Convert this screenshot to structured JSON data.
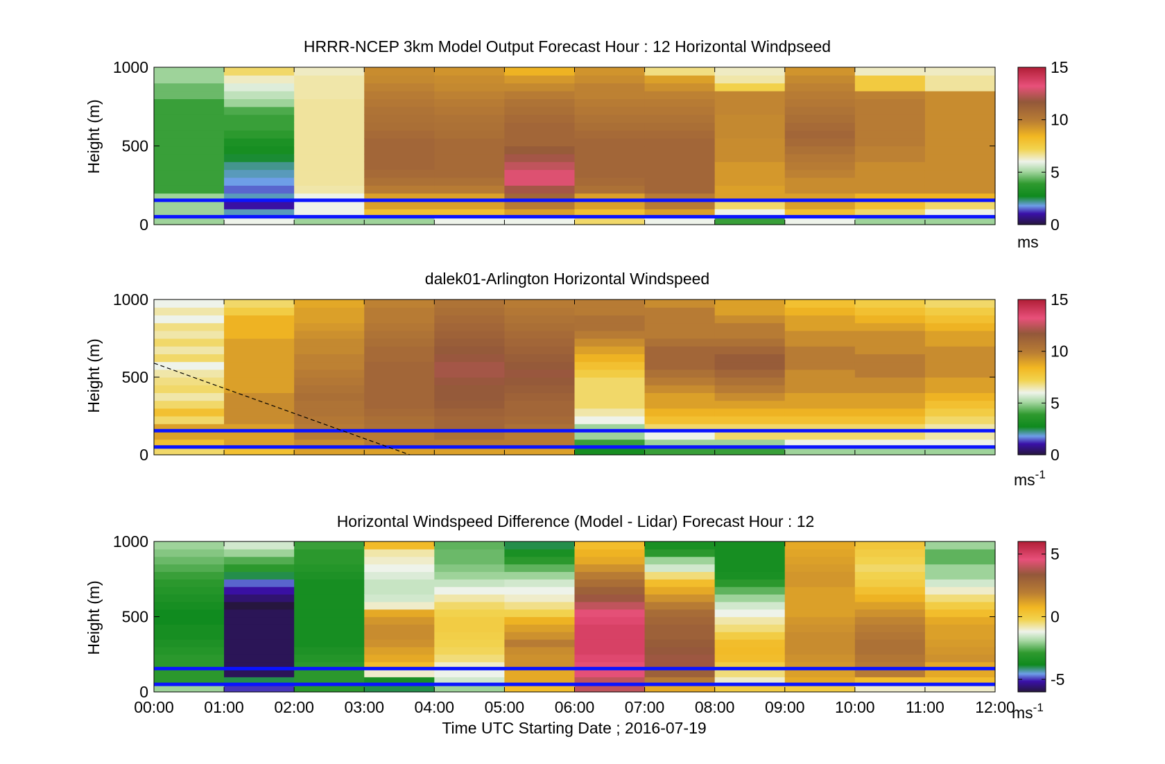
{
  "chart_data": [
    {
      "type": "heatmap",
      "title": "HRRR-NCEP 3km Model Output   Forecast Hour : 12 Horizontal Windpseed",
      "ylabel": "Height (m)",
      "ylim": [
        0,
        1000
      ],
      "yticks": [
        "0",
        "500",
        "1000"
      ],
      "x_categories": [
        "00:00",
        "01:00",
        "02:00",
        "03:00",
        "04:00",
        "05:00",
        "06:00",
        "07:00",
        "08:00",
        "09:00",
        "10:00",
        "11:00"
      ],
      "colorbar": {
        "range": [
          0,
          15
        ],
        "ticks": [
          "0",
          "5",
          "10",
          "15"
        ],
        "unit": "ms",
        "unit_sup": ""
      },
      "reference_lines_m": [
        50,
        155
      ],
      "heights_m": [
        25,
        75,
        125,
        175,
        225,
        275,
        325,
        375,
        425,
        475,
        525,
        575,
        625,
        675,
        725,
        775,
        825,
        875,
        925,
        975
      ],
      "values": [
        [
          5,
          5,
          5,
          5,
          4,
          4,
          4,
          4,
          4,
          4,
          4,
          4,
          4,
          4,
          4,
          4,
          4.5,
          4.5,
          5,
          5
        ],
        [
          6,
          2,
          1,
          2,
          1.5,
          1.8,
          2,
          2.2,
          2.6,
          3,
          3.2,
          3.8,
          4,
          4,
          4.2,
          5,
          5.4,
          5.8,
          6.3,
          7
        ],
        [
          5,
          6,
          6,
          6,
          6.5,
          6.6,
          6.6,
          6.6,
          6.6,
          6.6,
          6.6,
          6.6,
          6.6,
          6.6,
          6.6,
          6.6,
          6.5,
          6.5,
          6.5,
          6.3
        ],
        [
          5,
          8,
          9,
          9,
          10,
          10.5,
          10.8,
          11,
          11,
          11,
          11,
          10.8,
          10.6,
          10.5,
          10.4,
          10.2,
          10,
          9.8,
          9.6,
          9.5
        ],
        [
          6,
          8,
          9,
          9,
          10,
          10.5,
          10.8,
          10.8,
          10.8,
          10.8,
          10.8,
          10.6,
          10.5,
          10.4,
          10.2,
          10,
          9.8,
          9.6,
          9.5,
          9.3
        ],
        [
          6,
          9,
          10,
          11,
          12,
          13,
          13,
          12.5,
          12,
          11.5,
          11,
          11,
          11,
          10.8,
          10.6,
          10.4,
          10,
          9.6,
          9.2,
          8.5
        ],
        [
          7,
          8,
          9,
          9,
          10.5,
          10.8,
          11,
          11,
          11,
          11,
          11,
          10.8,
          10.6,
          10.4,
          10.2,
          10,
          9.8,
          9.8,
          9.5,
          9.3
        ],
        [
          6,
          9,
          10,
          10,
          11,
          11,
          11,
          11,
          11,
          11,
          11,
          10.8,
          10.6,
          10.4,
          10.2,
          10,
          9.8,
          9.4,
          9,
          6.8
        ],
        [
          4,
          6,
          7,
          9,
          9,
          9.2,
          9.2,
          9.2,
          9.5,
          9.5,
          9.5,
          9.6,
          9.6,
          9.6,
          9.7,
          9.7,
          9.7,
          7.3,
          6.5,
          6.3
        ],
        [
          6,
          8,
          9,
          9,
          9.5,
          9.5,
          9.8,
          10,
          10.2,
          10.5,
          10.8,
          11,
          10.8,
          10.6,
          10.4,
          10.2,
          10,
          9.8,
          9.6,
          9.3
        ],
        [
          5,
          7,
          8,
          8.5,
          9.5,
          9.5,
          9.5,
          9.5,
          9.8,
          9.8,
          10,
          10,
          10,
          10,
          10,
          10,
          9.8,
          7.6,
          7.6,
          6.3
        ],
        [
          5,
          6,
          7,
          8.5,
          9.5,
          9.5,
          9.5,
          9.5,
          9.5,
          9.5,
          9.5,
          9.5,
          9.5,
          9.5,
          9.5,
          9.5,
          9.5,
          6.6,
          6.6,
          6.3
        ]
      ]
    },
    {
      "type": "heatmap",
      "title": "dalek01-Arlington  Horizontal Windspeed",
      "ylabel": "Height (m)",
      "ylim": [
        0,
        1000
      ],
      "yticks": [
        "0",
        "500",
        "1000"
      ],
      "x_categories": [
        "00:00",
        "01:00",
        "02:00",
        "03:00",
        "04:00",
        "05:00",
        "06:00",
        "07:00",
        "08:00",
        "09:00",
        "10:00",
        "11:00"
      ],
      "colorbar": {
        "range": [
          0,
          15
        ],
        "ticks": [
          "0",
          "5",
          "10",
          "15"
        ],
        "unit": "ms",
        "unit_sup": "-1"
      },
      "reference_lines_m": [
        50,
        155
      ],
      "heights_m": [
        25,
        75,
        125,
        175,
        225,
        275,
        325,
        375,
        425,
        475,
        525,
        575,
        625,
        675,
        725,
        775,
        825,
        875,
        925,
        975
      ],
      "dashed_line": [
        [
          0,
          590
        ],
        [
          3.65,
          0
        ]
      ],
      "values": [
        [
          7,
          8,
          9,
          9,
          7,
          8,
          7,
          6.5,
          7,
          6.8,
          6.5,
          6,
          7,
          6.5,
          7,
          6.5,
          6.8,
          6,
          6.5,
          6
        ],
        [
          8,
          9,
          9,
          9,
          9.5,
          9.5,
          9.5,
          9.5,
          9,
          9,
          9,
          9,
          9,
          9,
          9,
          8.5,
          8.5,
          8.5,
          7.5,
          7
        ],
        [
          9,
          9.5,
          10,
          10,
          10.2,
          10.4,
          10.4,
          10.6,
          10.4,
          10.2,
          10,
          9.8,
          9.8,
          9.6,
          9.6,
          9.4,
          9.2,
          9,
          9,
          8.8
        ],
        [
          9,
          10,
          10,
          10.5,
          10.6,
          10.8,
          11,
          11,
          11,
          11,
          11,
          11,
          10.8,
          10.8,
          10.6,
          10.4,
          10.2,
          10,
          10,
          9.8
        ],
        [
          9,
          10,
          10.5,
          11,
          11,
          11.2,
          11.5,
          11.6,
          11.6,
          11.8,
          12,
          12,
          11.8,
          11.6,
          11.4,
          11.2,
          11,
          10.8,
          10.6,
          10.4
        ],
        [
          9,
          10,
          10,
          10.5,
          10.8,
          11,
          11,
          11.2,
          11.4,
          11.6,
          11.8,
          11.6,
          11.4,
          11.2,
          11,
          10.8,
          10.6,
          10.4,
          10.2,
          10
        ],
        [
          3,
          4,
          5,
          5,
          6,
          6.5,
          7,
          7,
          7,
          7,
          7.5,
          8,
          8.5,
          9,
          9.5,
          10,
          10.5,
          10.5,
          10,
          10
        ],
        [
          4,
          5,
          6,
          7,
          8,
          8.5,
          9,
          9,
          9.5,
          10,
          10.5,
          11,
          11,
          11,
          10.5,
          10,
          10,
          10,
          10,
          9.5
        ],
        [
          4,
          5,
          7,
          7,
          8,
          8.5,
          9,
          9.5,
          10,
          10.5,
          11,
          11.5,
          11.5,
          11,
          10.5,
          10,
          10,
          9.5,
          9,
          9
        ],
        [
          5,
          6,
          7,
          7,
          8,
          8.5,
          9,
          9,
          9.5,
          9.5,
          9.5,
          10,
          10,
          10,
          9.5,
          9.5,
          9,
          9,
          8.5,
          8
        ],
        [
          5,
          6,
          7,
          7,
          8,
          8.5,
          9,
          9,
          9.5,
          9.5,
          10,
          10,
          10,
          9.5,
          9.5,
          9.5,
          9,
          8.5,
          8,
          7.5
        ],
        [
          5,
          6,
          6.5,
          6.5,
          7,
          7.5,
          8,
          8.5,
          9,
          9,
          9.5,
          9.5,
          9.5,
          9.5,
          9,
          9,
          8.5,
          8,
          7.5,
          7
        ]
      ]
    },
    {
      "type": "heatmap",
      "title": "Horizontal Windspeed Difference (Model - Lidar) Forecast Hour : 12",
      "xlabel": "Time UTC  Starting Date ; 2016-07-19",
      "ylabel": "Height (m)",
      "ylim": [
        0,
        1000
      ],
      "yticks": [
        "0",
        "500",
        "1000"
      ],
      "x_categories": [
        "00:00",
        "01:00",
        "02:00",
        "03:00",
        "04:00",
        "05:00",
        "06:00",
        "07:00",
        "08:00",
        "09:00",
        "10:00",
        "11:00"
      ],
      "xticks": [
        "00:00",
        "01:00",
        "02:00",
        "03:00",
        "04:00",
        "05:00",
        "06:00",
        "07:00",
        "08:00",
        "09:00",
        "10:00",
        "11:00",
        "12:00"
      ],
      "colorbar": {
        "range": [
          -6,
          6
        ],
        "ticks": [
          "-5",
          "0",
          "5"
        ],
        "unit": "ms",
        "unit_sup": "-1"
      },
      "reference_lines_m": [
        50,
        155
      ],
      "heights_m": [
        25,
        75,
        125,
        175,
        225,
        275,
        325,
        375,
        425,
        475,
        525,
        575,
        625,
        675,
        725,
        775,
        825,
        875,
        925,
        975
      ],
      "values": [
        [
          -2,
          -3,
          -3,
          -3,
          -3,
          -3.2,
          -3.4,
          -3.6,
          -3.6,
          -3.8,
          -3.8,
          -3.6,
          -3.4,
          -3.2,
          -3,
          -2.8,
          -2.6,
          -2.4,
          -2.2,
          -2
        ],
        [
          -5,
          -4,
          -5.8,
          -5.8,
          -5.8,
          -5.8,
          -5.8,
          -5.8,
          -5.8,
          -5.8,
          -5.8,
          -6,
          -5.6,
          -5.2,
          -4.8,
          -4,
          -3,
          -2.6,
          -2,
          -1.5
        ],
        [
          -3,
          -3,
          -3,
          -3,
          -3.2,
          -3.4,
          -3.6,
          -3.6,
          -3.6,
          -3.6,
          -3.6,
          -3.6,
          -3.6,
          -3.6,
          -3.6,
          -3.4,
          -3.2,
          -3,
          -3,
          -2.8
        ],
        [
          -4,
          -3.5,
          -1,
          0.5,
          1,
          1.2,
          1.5,
          1.6,
          1.6,
          1.4,
          1,
          -1,
          -1.5,
          -1.6,
          -1.6,
          -1.4,
          -1.2,
          -1,
          -0.8,
          0.6
        ],
        [
          -2,
          -1.5,
          -1.2,
          -1,
          -0.5,
          -0.3,
          -0.2,
          -0.1,
          0,
          0,
          -0.2,
          -0.4,
          -0.8,
          -1.2,
          -1.6,
          -2,
          -2.2,
          -2.4,
          -2.4,
          -2.5
        ],
        [
          0.5,
          1,
          1,
          1.5,
          1.5,
          1.6,
          2,
          1.5,
          1.2,
          0.8,
          -0.2,
          -0.6,
          -1,
          -1.2,
          -1.5,
          -2,
          -2.5,
          -3,
          -3.5,
          -4
        ],
        [
          4,
          4,
          4.5,
          4.5,
          4.8,
          5,
          5,
          5,
          5,
          4.8,
          4.5,
          4,
          3.5,
          3,
          2.5,
          2,
          1.5,
          1,
          0.8,
          0.5
        ],
        [
          1,
          2,
          3,
          3.5,
          3.5,
          3.4,
          3.2,
          3,
          3,
          2.8,
          2.6,
          2,
          1.5,
          1,
          0.5,
          -0.5,
          -1.5,
          -2,
          -3,
          -3.5
        ],
        [
          0,
          -1,
          -0.5,
          0,
          0.5,
          0.6,
          0.5,
          0,
          -0.5,
          -0.8,
          -1.2,
          -1.5,
          -2,
          -2.5,
          -3,
          -3.5,
          -3.6,
          -3.6,
          -3.6,
          -3.6
        ],
        [
          0,
          1,
          1.2,
          1.4,
          1.5,
          1.6,
          1.6,
          1.6,
          1.5,
          1.4,
          1.2,
          1.2,
          1.2,
          1.2,
          1.4,
          1.4,
          1.3,
          1.2,
          1.1,
          1
        ],
        [
          -1,
          0.5,
          2,
          2,
          2.2,
          2.4,
          2.4,
          2.2,
          2,
          1.8,
          1.5,
          1.2,
          0.8,
          0.4,
          0,
          -0.2,
          -0.4,
          -0.2,
          0,
          0.2
        ],
        [
          -1,
          0.5,
          1,
          1,
          1.5,
          1.4,
          1.3,
          1.2,
          1.2,
          1,
          0.5,
          0,
          -0.5,
          -1,
          -1.5,
          -2,
          -2,
          -2.5,
          -2.5,
          -2
        ]
      ]
    }
  ]
}
